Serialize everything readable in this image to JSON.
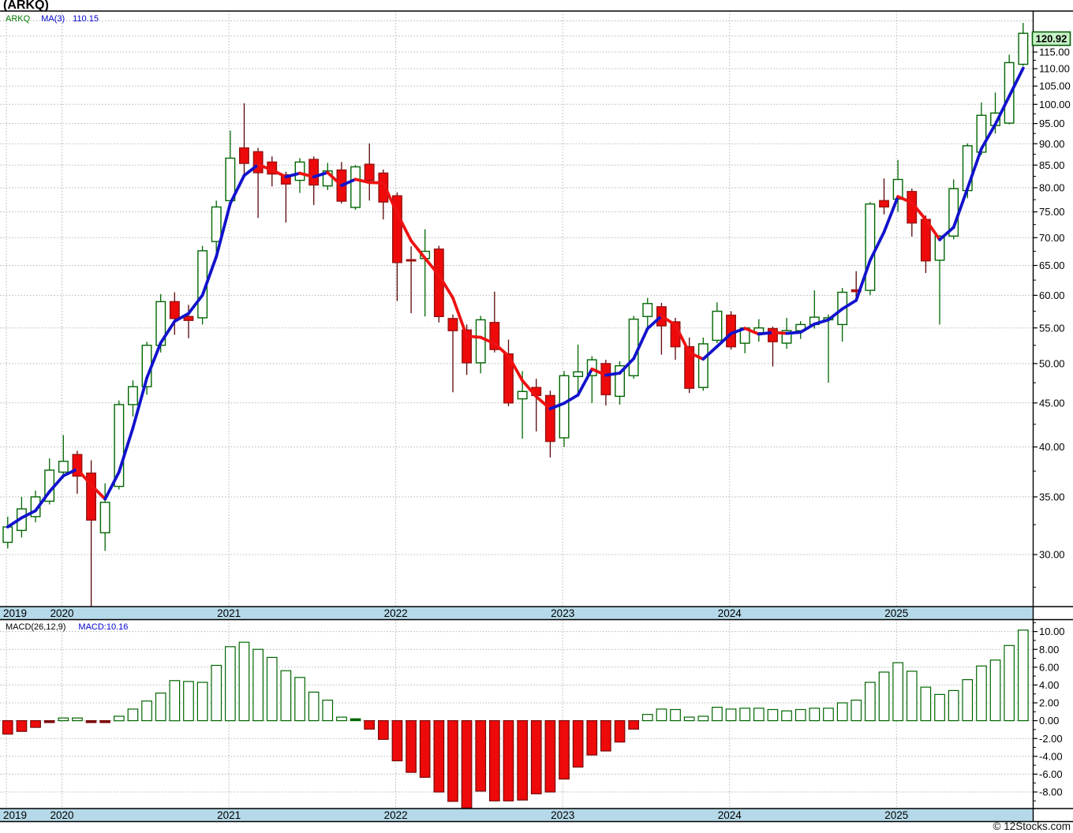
{
  "title": "(ARKQ)",
  "watermark": "© 12Stocks.com",
  "price_pane": {
    "legend": {
      "symbol": "ARKQ",
      "ma_label": "MA(3)",
      "ma_value": "110.15"
    },
    "last_price_tag": "120.92"
  },
  "macd_pane": {
    "legend_label": "MACD(26,12,9)",
    "legend_value": "MACD:10.16"
  },
  "x_axis": {
    "years": [
      {
        "label": "2019",
        "month_index": 0
      },
      {
        "label": "2020",
        "month_index": 4
      },
      {
        "label": "2021",
        "month_index": 16
      },
      {
        "label": "2022",
        "month_index": 28
      },
      {
        "label": "2023",
        "month_index": 40
      },
      {
        "label": "2024",
        "month_index": 52
      },
      {
        "label": "2025",
        "month_index": 64
      }
    ]
  },
  "colors": {
    "up_outline": "#006600",
    "up_fill": "#ffffff",
    "down_fill": "#ee0a0a",
    "down_outline": "#991111",
    "down_wick": "#5a0505",
    "ma_up": "#1212cc",
    "ma_down": "#ee1111",
    "grid": "#b4b4b4",
    "band_fill": "#b5d9e8",
    "band_border": "#000000",
    "tag_fill": "#c6f2c6",
    "tag_border": "#0a5c0a",
    "axis_line": "#000000",
    "axis_text": "#000000",
    "macd_pos_outline": "#006600",
    "macd_pos_fill": "#ffffff",
    "macd_neg_fill": "#ee0a0a",
    "macd_neg_outline": "#7a0808"
  },
  "chart_data": {
    "type": "candlestick",
    "symbol": "ARKQ",
    "interval": "monthly",
    "price_scale": "log",
    "ma_period": 3,
    "indicator": "MACD(26,12,9)",
    "last_close": 120.92,
    "last_ma": 110.15,
    "last_macd": 10.16,
    "price_axis": {
      "label_ticks": [
        30,
        35,
        40,
        45,
        50,
        55,
        60,
        65,
        70,
        75,
        80,
        85,
        90,
        95,
        100,
        105,
        110,
        115
      ],
      "grid_levels": [
        30,
        35,
        40,
        45,
        50,
        55,
        60,
        65,
        70,
        75,
        80,
        85,
        90,
        95,
        100,
        105,
        110,
        115,
        120,
        125
      ],
      "minor_step": 2.5,
      "range_shown": [
        26.0,
        128.0
      ]
    },
    "macd_axis": {
      "label_ticks": [
        10,
        8,
        6,
        4,
        2,
        0,
        -2,
        -4,
        -6,
        -8
      ],
      "grid_levels": [
        10,
        8,
        6,
        4,
        2,
        0,
        -2,
        -4,
        -6,
        -8
      ],
      "minor_step": 1,
      "range_shown": [
        -9.9,
        11.3
      ]
    },
    "candles": [
      {
        "t": "2019-09",
        "o": 31.0,
        "h": 33.2,
        "l": 30.5,
        "c": 32.3
      },
      {
        "t": "2019-10",
        "o": 32.0,
        "h": 35.0,
        "l": 31.4,
        "c": 33.9
      },
      {
        "t": "2019-11",
        "o": 33.2,
        "h": 35.6,
        "l": 32.7,
        "c": 35.0
      },
      {
        "t": "2019-12",
        "o": 34.6,
        "h": 38.8,
        "l": 34.3,
        "c": 37.6
      },
      {
        "t": "2020-01",
        "o": 37.4,
        "h": 41.3,
        "l": 36.8,
        "c": 38.5
      },
      {
        "t": "2020-02",
        "o": 39.2,
        "h": 39.6,
        "l": 35.3,
        "c": 37.0
      },
      {
        "t": "2020-03",
        "o": 37.3,
        "h": 38.6,
        "l": 26.1,
        "c": 32.9
      },
      {
        "t": "2020-04",
        "o": 31.8,
        "h": 36.3,
        "l": 30.3,
        "c": 34.5
      },
      {
        "t": "2020-05",
        "o": 36.0,
        "h": 45.3,
        "l": 35.7,
        "c": 44.8
      },
      {
        "t": "2020-06",
        "o": 44.8,
        "h": 47.8,
        "l": 43.4,
        "c": 47.0
      },
      {
        "t": "2020-07",
        "o": 47.0,
        "h": 53.0,
        "l": 46.0,
        "c": 52.5
      },
      {
        "t": "2020-08",
        "o": 52.5,
        "h": 60.2,
        "l": 51.5,
        "c": 59.0
      },
      {
        "t": "2020-09",
        "o": 59.0,
        "h": 60.5,
        "l": 54.0,
        "c": 56.4
      },
      {
        "t": "2020-10",
        "o": 56.7,
        "h": 58.5,
        "l": 53.5,
        "c": 56.1
      },
      {
        "t": "2020-11",
        "o": 56.5,
        "h": 68.5,
        "l": 55.5,
        "c": 67.6
      },
      {
        "t": "2020-12",
        "o": 69.3,
        "h": 77.3,
        "l": 67.0,
        "c": 76.0
      },
      {
        "t": "2021-01",
        "o": 77.3,
        "h": 93.2,
        "l": 76.0,
        "c": 86.6
      },
      {
        "t": "2021-02",
        "o": 89.0,
        "h": 100.3,
        "l": 83.0,
        "c": 85.4
      },
      {
        "t": "2021-03",
        "o": 88.1,
        "h": 89.0,
        "l": 73.8,
        "c": 83.3
      },
      {
        "t": "2021-04",
        "o": 85.7,
        "h": 87.0,
        "l": 80.3,
        "c": 83.0
      },
      {
        "t": "2021-05",
        "o": 82.8,
        "h": 83.5,
        "l": 72.9,
        "c": 80.8
      },
      {
        "t": "2021-06",
        "o": 81.6,
        "h": 86.6,
        "l": 78.9,
        "c": 85.7
      },
      {
        "t": "2021-07",
        "o": 86.3,
        "h": 87.0,
        "l": 76.4,
        "c": 80.6
      },
      {
        "t": "2021-08",
        "o": 80.4,
        "h": 85.5,
        "l": 79.5,
        "c": 83.7
      },
      {
        "t": "2021-09",
        "o": 83.9,
        "h": 85.7,
        "l": 76.7,
        "c": 77.2
      },
      {
        "t": "2021-10",
        "o": 75.9,
        "h": 85.0,
        "l": 75.4,
        "c": 84.6
      },
      {
        "t": "2021-11",
        "o": 85.2,
        "h": 90.1,
        "l": 77.3,
        "c": 81.6
      },
      {
        "t": "2021-12",
        "o": 83.2,
        "h": 84.0,
        "l": 73.5,
        "c": 77.0
      },
      {
        "t": "2022-01",
        "o": 78.3,
        "h": 79.0,
        "l": 59.1,
        "c": 65.5
      },
      {
        "t": "2022-02",
        "o": 66.0,
        "h": 68.4,
        "l": 57.2,
        "c": 65.8
      },
      {
        "t": "2022-03",
        "o": 66.2,
        "h": 71.6,
        "l": 56.7,
        "c": 67.5
      },
      {
        "t": "2022-04",
        "o": 67.9,
        "h": 68.5,
        "l": 55.8,
        "c": 56.7
      },
      {
        "t": "2022-05",
        "o": 56.4,
        "h": 57.0,
        "l": 46.3,
        "c": 54.6
      },
      {
        "t": "2022-06",
        "o": 54.7,
        "h": 55.5,
        "l": 48.5,
        "c": 50.1
      },
      {
        "t": "2022-07",
        "o": 50.1,
        "h": 56.8,
        "l": 48.7,
        "c": 56.2
      },
      {
        "t": "2022-08",
        "o": 55.8,
        "h": 60.6,
        "l": 51.5,
        "c": 51.9
      },
      {
        "t": "2022-09",
        "o": 51.3,
        "h": 53.3,
        "l": 44.6,
        "c": 45.0
      },
      {
        "t": "2022-10",
        "o": 45.5,
        "h": 49.0,
        "l": 40.9,
        "c": 46.4
      },
      {
        "t": "2022-11",
        "o": 46.9,
        "h": 48.0,
        "l": 41.7,
        "c": 45.9
      },
      {
        "t": "2022-12",
        "o": 45.9,
        "h": 46.5,
        "l": 38.9,
        "c": 40.6
      },
      {
        "t": "2023-01",
        "o": 41.0,
        "h": 49.0,
        "l": 40.0,
        "c": 48.4
      },
      {
        "t": "2023-02",
        "o": 48.3,
        "h": 52.6,
        "l": 46.0,
        "c": 48.9
      },
      {
        "t": "2023-03",
        "o": 48.4,
        "h": 51.0,
        "l": 45.0,
        "c": 50.5
      },
      {
        "t": "2023-04",
        "o": 50.0,
        "h": 50.5,
        "l": 44.7,
        "c": 46.0
      },
      {
        "t": "2023-05",
        "o": 45.8,
        "h": 50.3,
        "l": 44.8,
        "c": 49.7
      },
      {
        "t": "2023-06",
        "o": 48.4,
        "h": 56.8,
        "l": 48.0,
        "c": 56.3
      },
      {
        "t": "2023-07",
        "o": 56.7,
        "h": 59.6,
        "l": 55.1,
        "c": 58.7
      },
      {
        "t": "2023-08",
        "o": 58.2,
        "h": 58.8,
        "l": 51.2,
        "c": 55.3
      },
      {
        "t": "2023-09",
        "o": 55.9,
        "h": 56.5,
        "l": 50.5,
        "c": 52.3
      },
      {
        "t": "2023-10",
        "o": 52.3,
        "h": 53.6,
        "l": 46.2,
        "c": 46.8
      },
      {
        "t": "2023-11",
        "o": 46.9,
        "h": 53.6,
        "l": 46.5,
        "c": 52.7
      },
      {
        "t": "2023-12",
        "o": 53.2,
        "h": 58.9,
        "l": 52.8,
        "c": 57.5
      },
      {
        "t": "2024-01",
        "o": 56.9,
        "h": 57.5,
        "l": 51.9,
        "c": 52.3
      },
      {
        "t": "2024-02",
        "o": 52.8,
        "h": 55.1,
        "l": 51.4,
        "c": 55.0
      },
      {
        "t": "2024-03",
        "o": 54.3,
        "h": 56.3,
        "l": 53.0,
        "c": 55.0
      },
      {
        "t": "2024-04",
        "o": 54.9,
        "h": 55.2,
        "l": 49.6,
        "c": 53.0
      },
      {
        "t": "2024-05",
        "o": 52.8,
        "h": 56.5,
        "l": 52.0,
        "c": 54.6
      },
      {
        "t": "2024-06",
        "o": 54.6,
        "h": 56.0,
        "l": 53.4,
        "c": 55.5
      },
      {
        "t": "2024-07",
        "o": 55.5,
        "h": 60.8,
        "l": 54.9,
        "c": 56.6
      },
      {
        "t": "2024-08",
        "o": 56.2,
        "h": 57.0,
        "l": 47.5,
        "c": 56.5
      },
      {
        "t": "2024-09",
        "o": 55.5,
        "h": 61.2,
        "l": 53.0,
        "c": 60.5
      },
      {
        "t": "2024-10",
        "o": 60.9,
        "h": 64.0,
        "l": 59.3,
        "c": 60.6
      },
      {
        "t": "2024-11",
        "o": 60.8,
        "h": 77.0,
        "l": 60.0,
        "c": 76.6
      },
      {
        "t": "2024-12",
        "o": 77.3,
        "h": 82.0,
        "l": 74.5,
        "c": 76.0
      },
      {
        "t": "2025-01",
        "o": 77.6,
        "h": 86.2,
        "l": 75.0,
        "c": 81.8
      },
      {
        "t": "2025-02",
        "o": 79.2,
        "h": 79.8,
        "l": 70.2,
        "c": 72.8
      },
      {
        "t": "2025-03",
        "o": 73.5,
        "h": 74.3,
        "l": 63.7,
        "c": 65.8
      },
      {
        "t": "2025-04",
        "o": 65.9,
        "h": 70.5,
        "l": 55.5,
        "c": 70.3
      },
      {
        "t": "2025-05",
        "o": 70.3,
        "h": 81.8,
        "l": 69.7,
        "c": 79.8
      },
      {
        "t": "2025-06",
        "o": 79.4,
        "h": 90.1,
        "l": 77.8,
        "c": 89.5
      },
      {
        "t": "2025-07",
        "o": 88.0,
        "h": 100.5,
        "l": 87.3,
        "c": 97.1
      },
      {
        "t": "2025-08",
        "o": 94.5,
        "h": 103.2,
        "l": 92.5,
        "c": 97.7
      },
      {
        "t": "2025-09",
        "o": 95.1,
        "h": 114.2,
        "l": 94.8,
        "c": 111.8
      },
      {
        "t": "2025-10",
        "o": 111.3,
        "h": 124.3,
        "l": 110.8,
        "c": 120.92
      }
    ],
    "macd": [
      -1.5,
      -1.2,
      -0.75,
      -0.2,
      0.3,
      0.3,
      -0.15,
      -0.2,
      0.5,
      1.3,
      2.2,
      3.1,
      4.5,
      4.4,
      4.3,
      6.2,
      8.3,
      8.8,
      8.0,
      7.1,
      5.6,
      4.85,
      3.2,
      2.3,
      0.4,
      0.05,
      -0.95,
      -2.1,
      -4.5,
      -5.8,
      -6.35,
      -8.0,
      -9.05,
      -9.8,
      -7.9,
      -9.0,
      -9.0,
      -8.9,
      -8.2,
      -8.0,
      -6.55,
      -5.2,
      -3.85,
      -3.4,
      -2.4,
      -0.95,
      0.7,
      1.3,
      1.25,
      0.4,
      0.5,
      1.5,
      1.3,
      1.4,
      1.4,
      1.25,
      1.1,
      1.25,
      1.4,
      1.4,
      2.0,
      2.3,
      4.3,
      5.45,
      6.5,
      5.55,
      3.76,
      2.94,
      3.38,
      4.6,
      6.13,
      6.8,
      8.43,
      10.16
    ]
  }
}
